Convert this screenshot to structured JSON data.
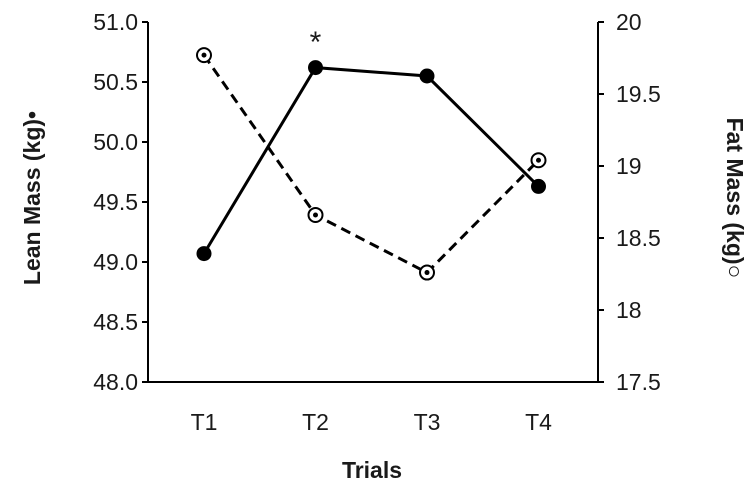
{
  "chart_data": {
    "type": "line",
    "title": "",
    "xlabel": "Trials",
    "categories": [
      "T1",
      "T2",
      "T3",
      "T4"
    ],
    "ylabel_left": "Lean Mass (kg)",
    "ylabel_left_marker": "•",
    "ylabel_right": "Fat Mass (kg)",
    "ylabel_right_marker": "○",
    "ylim_left": [
      48.0,
      51.0
    ],
    "ylim_right": [
      17.5,
      20.0
    ],
    "yticks_left": [
      "48.0",
      "48.5",
      "49.0",
      "49.5",
      "50.0",
      "50.5",
      "51.0"
    ],
    "yticks_right": [
      "17.5",
      "18",
      "18.5",
      "19",
      "19.5",
      "20"
    ],
    "grid": false,
    "series": [
      {
        "axis": "left",
        "values": [
          49.07,
          50.62,
          50.55,
          49.63
        ],
        "line_style": "solid",
        "marker": "filled-circle",
        "color": "#000000"
      },
      {
        "axis": "right",
        "values": [
          19.77,
          18.66,
          18.26,
          19.04
        ],
        "line_style": "dashed",
        "marker": "open-circle",
        "color": "#000000"
      }
    ],
    "annotations": [
      {
        "text": "*",
        "category": "T2"
      }
    ]
  }
}
